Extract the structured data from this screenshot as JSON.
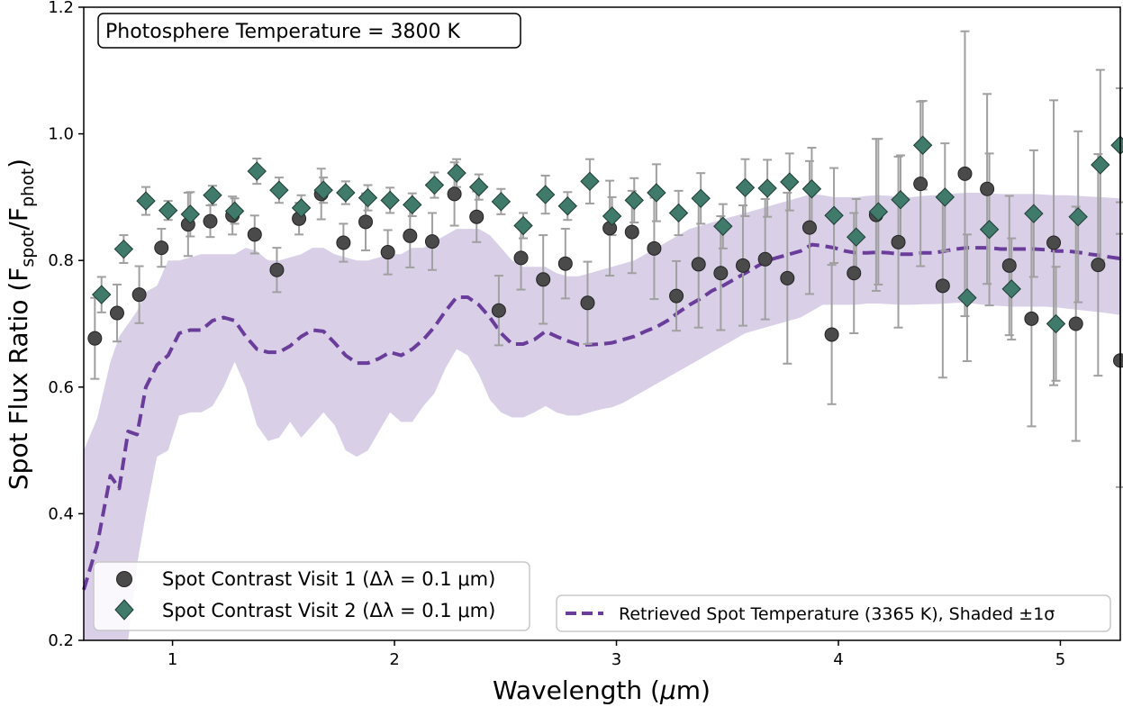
{
  "chart_data": {
    "type": "scatter",
    "xlabel_main": "Wavelength (",
    "xlabel_mu": "μ",
    "xlabel_unit": "m)",
    "ylabel_main": "Spot Flux Ratio (F",
    "ylabel_sub1": "spot",
    "ylabel_mid": "/F",
    "ylabel_sub2": "phot",
    "ylabel_end": ")",
    "xlim": [
      0.6,
      5.27
    ],
    "ylim": [
      0.2,
      1.2
    ],
    "xticks": [
      1,
      2,
      3,
      4,
      5
    ],
    "xtick_labels": [
      "1",
      "2",
      "3",
      "4",
      "5"
    ],
    "yticks": [
      0.2,
      0.4,
      0.6,
      0.8,
      1.0,
      1.2
    ],
    "ytick_labels": [
      "0.2",
      "0.4",
      "0.6",
      "0.8",
      "1.0",
      "1.2"
    ],
    "annotation": "Photosphere Temperature = 3800 K",
    "legend_left": {
      "placement": "lower-left",
      "entries": [
        "Spot Contrast Visit 1 (Δλ = 0.1 μm)",
        "Spot Contrast Visit 2 (Δλ = 0.1 μm)"
      ]
    },
    "legend_right": {
      "placement": "lower-right",
      "entries": [
        "Retrieved Spot Temperature (3365 K), Shaded ±1σ"
      ]
    },
    "colors": {
      "visit1": "#4a4a4a",
      "visit2": "#3f7a6a",
      "model": "#6a3d9a",
      "band": "#d9d0e8",
      "errorbar": "#a0a0a0"
    },
    "series": [
      {
        "name": "Spot Contrast Visit 1 (Δλ = 0.1 μm)",
        "marker": "circle",
        "x": [
          0.65,
          0.75,
          0.85,
          0.95,
          1.07,
          1.17,
          1.27,
          1.37,
          1.47,
          1.57,
          1.67,
          1.77,
          1.87,
          1.97,
          2.07,
          2.17,
          2.27,
          2.37,
          2.47,
          2.57,
          2.67,
          2.77,
          2.87,
          2.97,
          3.07,
          3.17,
          3.27,
          3.37,
          3.47,
          3.57,
          3.67,
          3.77,
          3.87,
          3.97,
          4.07,
          4.17,
          4.27,
          4.37,
          4.47,
          4.57,
          4.67,
          4.77,
          4.87,
          4.97,
          5.07,
          5.17,
          5.27
        ],
        "y": [
          0.677,
          0.717,
          0.746,
          0.82,
          0.857,
          0.862,
          0.871,
          0.841,
          0.785,
          0.866,
          0.905,
          0.828,
          0.861,
          0.813,
          0.839,
          0.83,
          0.905,
          0.869,
          0.721,
          0.804,
          0.77,
          0.795,
          0.733,
          0.851,
          0.845,
          0.819,
          0.744,
          0.794,
          0.78,
          0.792,
          0.802,
          0.772,
          0.852,
          0.683,
          0.78,
          0.872,
          0.829,
          0.921,
          0.76,
          0.937,
          0.913,
          0.792,
          0.708,
          0.828,
          0.7,
          0.793,
          0.642
        ],
        "yerr": [
          0.064,
          0.045,
          0.045,
          0.03,
          0.05,
          0.025,
          0.03,
          0.03,
          0.035,
          0.025,
          0.04,
          0.03,
          0.045,
          0.035,
          0.05,
          0.045,
          0.05,
          0.04,
          0.055,
          0.05,
          0.07,
          0.055,
          0.065,
          0.075,
          0.065,
          0.08,
          0.055,
          0.1,
          0.09,
          0.095,
          0.095,
          0.135,
          0.105,
          0.11,
          0.095,
          0.12,
          0.135,
          0.13,
          0.145,
          0.225,
          0.15,
          0.11,
          0.17,
          0.225,
          0.185,
          0.175,
          0.2
        ]
      },
      {
        "name": "Spot Contrast Visit 2 (Δλ = 0.1 μm)",
        "marker": "diamond",
        "x": [
          0.68,
          0.78,
          0.88,
          0.98,
          1.08,
          1.18,
          1.28,
          1.38,
          1.48,
          1.58,
          1.68,
          1.78,
          1.88,
          1.98,
          2.08,
          2.18,
          2.28,
          2.38,
          2.48,
          2.58,
          2.68,
          2.78,
          2.88,
          2.98,
          3.08,
          3.18,
          3.28,
          3.38,
          3.48,
          3.58,
          3.68,
          3.78,
          3.88,
          3.98,
          4.08,
          4.18,
          4.28,
          4.38,
          4.48,
          4.58,
          4.68,
          4.78,
          4.88,
          4.98,
          5.08,
          5.18,
          5.27
        ],
        "y": [
          0.746,
          0.818,
          0.894,
          0.879,
          0.873,
          0.903,
          0.878,
          0.941,
          0.911,
          0.883,
          0.911,
          0.907,
          0.899,
          0.895,
          0.888,
          0.919,
          0.938,
          0.916,
          0.893,
          0.855,
          0.904,
          0.886,
          0.925,
          0.87,
          0.895,
          0.907,
          0.875,
          0.898,
          0.854,
          0.915,
          0.914,
          0.924,
          0.913,
          0.871,
          0.837,
          0.877,
          0.896,
          0.982,
          0.9,
          0.741,
          0.849,
          0.755,
          0.874,
          0.7,
          0.869,
          0.951,
          0.982
        ],
        "yerr": [
          0.028,
          0.022,
          0.022,
          0.015,
          0.035,
          0.015,
          0.02,
          0.02,
          0.02,
          0.02,
          0.02,
          0.018,
          0.02,
          0.02,
          0.018,
          0.02,
          0.022,
          0.02,
          0.02,
          0.02,
          0.03,
          0.022,
          0.035,
          0.03,
          0.035,
          0.045,
          0.035,
          0.04,
          0.035,
          0.045,
          0.045,
          0.045,
          0.065,
          0.075,
          0.06,
          0.115,
          0.07,
          0.07,
          0.085,
          0.1,
          0.12,
          0.08,
          0.1,
          0.09,
          0.135,
          0.15,
          0.09
        ]
      }
    ],
    "model": {
      "name": "Retrieved Spot Temperature (3365 K), Shaded ±1σ",
      "x": [
        0.6,
        0.66,
        0.72,
        0.76,
        0.8,
        0.84,
        0.88,
        0.93,
        0.98,
        1.03,
        1.08,
        1.13,
        1.18,
        1.23,
        1.28,
        1.33,
        1.38,
        1.43,
        1.48,
        1.53,
        1.58,
        1.63,
        1.68,
        1.73,
        1.78,
        1.83,
        1.88,
        1.93,
        1.98,
        2.03,
        2.08,
        2.13,
        2.18,
        2.23,
        2.28,
        2.33,
        2.38,
        2.43,
        2.48,
        2.53,
        2.58,
        2.63,
        2.68,
        2.73,
        2.78,
        2.83,
        2.88,
        2.93,
        2.98,
        3.03,
        3.08,
        3.13,
        3.18,
        3.23,
        3.28,
        3.33,
        3.38,
        3.43,
        3.48,
        3.53,
        3.58,
        3.63,
        3.68,
        3.73,
        3.78,
        3.83,
        3.88,
        3.93,
        3.98,
        4.03,
        4.08,
        4.13,
        4.18,
        4.23,
        4.28,
        4.33,
        4.38,
        4.43,
        4.48,
        4.53,
        4.58,
        4.63,
        4.68,
        4.73,
        4.78,
        4.83,
        4.88,
        4.93,
        4.98,
        5.03,
        5.08,
        5.13,
        5.18,
        5.23,
        5.27
      ],
      "y": [
        0.28,
        0.35,
        0.46,
        0.44,
        0.53,
        0.525,
        0.6,
        0.635,
        0.65,
        0.685,
        0.69,
        0.69,
        0.705,
        0.71,
        0.705,
        0.68,
        0.66,
        0.655,
        0.655,
        0.665,
        0.68,
        0.69,
        0.688,
        0.67,
        0.65,
        0.638,
        0.638,
        0.645,
        0.655,
        0.65,
        0.66,
        0.675,
        0.695,
        0.72,
        0.742,
        0.742,
        0.73,
        0.71,
        0.685,
        0.668,
        0.668,
        0.675,
        0.688,
        0.68,
        0.673,
        0.667,
        0.667,
        0.668,
        0.67,
        0.675,
        0.68,
        0.688,
        0.695,
        0.705,
        0.718,
        0.73,
        0.74,
        0.752,
        0.76,
        0.77,
        0.78,
        0.79,
        0.8,
        0.805,
        0.81,
        0.815,
        0.825,
        0.823,
        0.82,
        0.815,
        0.812,
        0.812,
        0.813,
        0.812,
        0.81,
        0.81,
        0.812,
        0.812,
        0.815,
        0.818,
        0.82,
        0.82,
        0.82,
        0.818,
        0.818,
        0.818,
        0.818,
        0.817,
        0.815,
        0.815,
        0.813,
        0.81,
        0.808,
        0.805,
        0.803
      ],
      "lower": [
        0.2,
        0.2,
        0.2,
        0.2,
        0.2,
        0.32,
        0.4,
        0.49,
        0.5,
        0.555,
        0.56,
        0.56,
        0.57,
        0.6,
        0.64,
        0.6,
        0.54,
        0.515,
        0.52,
        0.545,
        0.52,
        0.54,
        0.56,
        0.54,
        0.5,
        0.49,
        0.5,
        0.53,
        0.56,
        0.545,
        0.545,
        0.57,
        0.59,
        0.63,
        0.66,
        0.65,
        0.62,
        0.58,
        0.56,
        0.552,
        0.552,
        0.56,
        0.57,
        0.56,
        0.555,
        0.555,
        0.56,
        0.565,
        0.568,
        0.575,
        0.585,
        0.595,
        0.605,
        0.615,
        0.625,
        0.635,
        0.645,
        0.655,
        0.665,
        0.675,
        0.685,
        0.69,
        0.695,
        0.7,
        0.705,
        0.71,
        0.72,
        0.73,
        0.73,
        0.73,
        0.73,
        0.732,
        0.732,
        0.731,
        0.73,
        0.73,
        0.731,
        0.731,
        0.732,
        0.733,
        0.733,
        0.731,
        0.729,
        0.728,
        0.727,
        0.727,
        0.727,
        0.727,
        0.726,
        0.724,
        0.722,
        0.72,
        0.718,
        0.716,
        0.714
      ],
      "upper": [
        0.5,
        0.55,
        0.64,
        0.68,
        0.7,
        0.72,
        0.75,
        0.76,
        0.8,
        0.8,
        0.805,
        0.81,
        0.81,
        0.81,
        0.81,
        0.82,
        0.815,
        0.8,
        0.8,
        0.805,
        0.81,
        0.82,
        0.82,
        0.81,
        0.805,
        0.8,
        0.8,
        0.805,
        0.81,
        0.81,
        0.82,
        0.82,
        0.83,
        0.84,
        0.85,
        0.85,
        0.85,
        0.84,
        0.82,
        0.8,
        0.79,
        0.79,
        0.79,
        0.78,
        0.775,
        0.775,
        0.78,
        0.785,
        0.79,
        0.795,
        0.8,
        0.81,
        0.82,
        0.83,
        0.84,
        0.85,
        0.855,
        0.86,
        0.865,
        0.87,
        0.875,
        0.88,
        0.885,
        0.89,
        0.895,
        0.9,
        0.905,
        0.903,
        0.9,
        0.9,
        0.9,
        0.902,
        0.903,
        0.902,
        0.9,
        0.9,
        0.902,
        0.903,
        0.904,
        0.906,
        0.907,
        0.907,
        0.906,
        0.905,
        0.905,
        0.905,
        0.905,
        0.904,
        0.903,
        0.903,
        0.902,
        0.901,
        0.9,
        0.899,
        0.898
      ]
    }
  }
}
